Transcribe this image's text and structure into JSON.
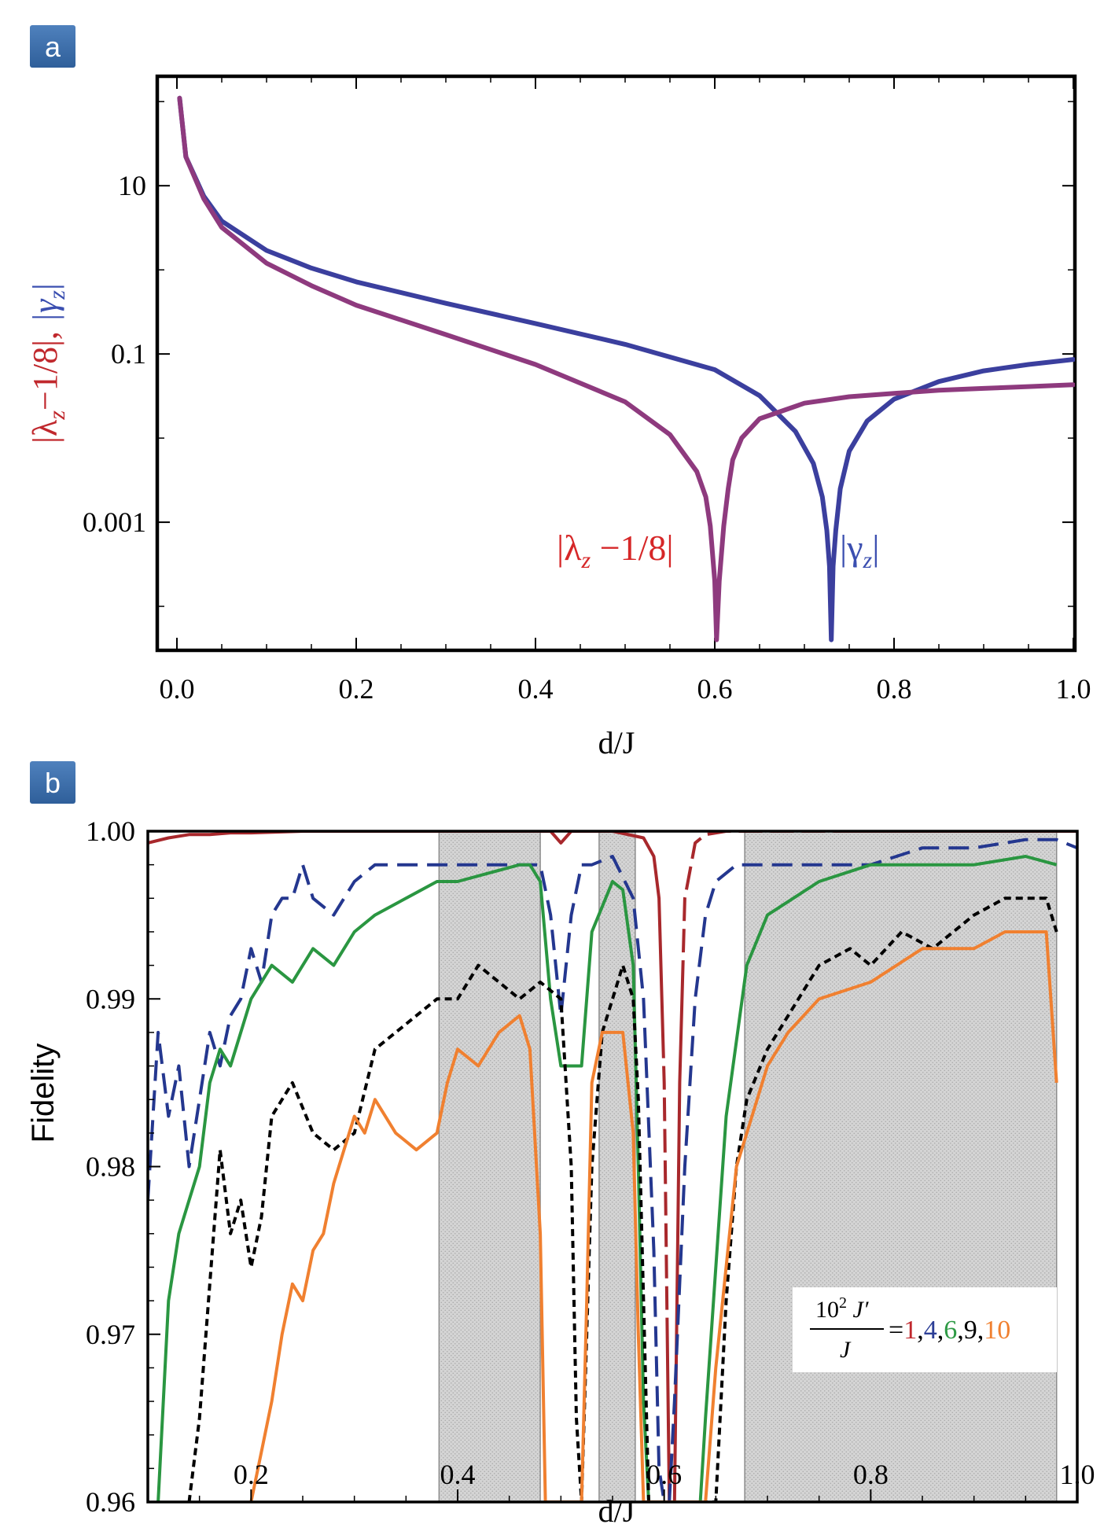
{
  "panels": {
    "a": {
      "tag": "a"
    },
    "b": {
      "tag": "b"
    }
  },
  "chart_data": [
    {
      "type": "line",
      "panel": "a",
      "xlabel": "d/J",
      "ylabel_parts": [
        "|λ",
        "z",
        "−1/8|, ",
        "|γ",
        "z",
        "|"
      ],
      "y_scale": "log",
      "xlim": [
        0.0,
        1.0
      ],
      "ylim": [
        3e-05,
        200
      ],
      "x_ticks": [
        0.0,
        0.2,
        0.4,
        0.6,
        0.8,
        1.0
      ],
      "x_tick_labels": [
        "0.0",
        "0.2",
        "0.4",
        "0.6",
        "0.8",
        "1.0"
      ],
      "y_ticks": [
        10,
        0.1,
        0.001
      ],
      "y_tick_labels": [
        "10",
        "0.1",
        "0.001"
      ],
      "series": [
        {
          "key": "gamma",
          "color": "#3b3f9e",
          "x": [
            0.003,
            0.01,
            0.03,
            0.05,
            0.1,
            0.15,
            0.2,
            0.3,
            0.4,
            0.5,
            0.6,
            0.65,
            0.69,
            0.71,
            0.72,
            0.725,
            0.728,
            0.73,
            0.732,
            0.735,
            0.74,
            0.75,
            0.77,
            0.8,
            0.85,
            0.9,
            0.95,
            1.0
          ],
          "y": [
            110,
            22,
            7.5,
            3.8,
            1.7,
            1.05,
            0.72,
            0.4,
            0.23,
            0.13,
            0.065,
            0.032,
            0.012,
            0.005,
            0.002,
            0.0008,
            0.0003,
            4e-05,
            0.0003,
            0.0008,
            0.0025,
            0.007,
            0.016,
            0.029,
            0.047,
            0.063,
            0.075,
            0.086
          ]
        },
        {
          "key": "lambda",
          "color": "#8e3a7e",
          "x": [
            0.003,
            0.01,
            0.03,
            0.05,
            0.1,
            0.15,
            0.2,
            0.3,
            0.4,
            0.5,
            0.55,
            0.58,
            0.59,
            0.595,
            0.6,
            0.602,
            0.605,
            0.61,
            0.615,
            0.62,
            0.63,
            0.65,
            0.7,
            0.75,
            0.8,
            0.85,
            0.9,
            0.95,
            1.0
          ],
          "y": [
            110,
            22,
            7,
            3.2,
            1.2,
            0.65,
            0.38,
            0.17,
            0.075,
            0.027,
            0.011,
            0.004,
            0.002,
            0.0009,
            0.0002,
            4e-05,
            0.0002,
            0.0009,
            0.0025,
            0.0055,
            0.01,
            0.017,
            0.026,
            0.031,
            0.034,
            0.037,
            0.039,
            0.041,
            0.043
          ]
        }
      ],
      "annotations": {
        "lambda_label_parts": [
          "|λ",
          "z",
          " −1/8|"
        ],
        "lambda_label_color": "#d62728",
        "gamma_label_parts": [
          "|γ",
          "z",
          "|"
        ],
        "gamma_label_color": "#3b4fb0"
      }
    },
    {
      "type": "line",
      "panel": "b",
      "xlabel": "d/J",
      "ylabel": "Fidelity",
      "xlim": [
        0.1,
        1.0
      ],
      "ylim": [
        0.96,
        1.0
      ],
      "x_ticks": [
        0.2,
        0.4,
        0.6,
        0.8,
        1.0
      ],
      "x_tick_labels": [
        "0.2",
        "0.4",
        "0.6",
        "0.8",
        "1.0"
      ],
      "y_ticks": [
        1.0,
        0.99,
        0.98,
        0.97,
        0.96
      ],
      "y_tick_labels": [
        "1.00",
        "0.99",
        "0.98",
        "0.97",
        "0.96"
      ],
      "shaded_regions": [
        [
          0.382,
          0.48
        ],
        [
          0.537,
          0.572
        ],
        [
          0.678,
          0.98
        ]
      ],
      "legend": {
        "numerator": "10",
        "exponent": "2",
        "numerator_var": " J′",
        "denominator": "J",
        "equals": "=",
        "sep": ",",
        "values": [
          "1",
          "4",
          "6",
          "9",
          "10"
        ],
        "value_colors": [
          "#c0282d",
          "#2c3e96",
          "#2e9a45",
          "#000000",
          "#f08030"
        ]
      },
      "series": [
        {
          "key": "J1",
          "color": "#a8282c",
          "dash": "solid-then-longdash",
          "x": [
            0.1,
            0.12,
            0.14,
            0.16,
            0.18,
            0.2,
            0.25,
            0.3,
            0.35,
            0.4,
            0.45,
            0.49,
            0.5,
            0.51,
            0.52,
            0.55,
            0.58,
            0.59,
            0.595,
            0.6,
            0.605,
            0.61,
            0.615,
            0.62,
            0.63,
            0.64,
            0.66,
            0.7,
            0.8,
            0.9,
            1.0
          ],
          "y": [
            0.9993,
            0.9996,
            0.9998,
            0.9998,
            0.9999,
            0.9999,
            1.0,
            1.0,
            1.0,
            1.0,
            1.0,
            1.0,
            0.9993,
            1.0,
            1.0,
            1.0,
            0.9996,
            0.9985,
            0.996,
            0.985,
            0.96,
            0.96,
            0.985,
            0.996,
            0.9993,
            0.9998,
            1.0,
            1.0,
            1.0,
            1.0,
            1.0
          ]
        },
        {
          "key": "J4",
          "color": "#24378f",
          "dash": "longdash",
          "x": [
            0.1,
            0.11,
            0.12,
            0.13,
            0.14,
            0.15,
            0.16,
            0.17,
            0.18,
            0.19,
            0.2,
            0.21,
            0.22,
            0.23,
            0.24,
            0.25,
            0.26,
            0.28,
            0.3,
            0.32,
            0.35,
            0.38,
            0.42,
            0.46,
            0.48,
            0.49,
            0.5,
            0.51,
            0.52,
            0.53,
            0.55,
            0.57,
            0.58,
            0.59,
            0.595,
            0.6,
            0.605,
            0.61,
            0.62,
            0.63,
            0.64,
            0.65,
            0.67,
            0.7,
            0.75,
            0.8,
            0.85,
            0.9,
            0.95,
            0.98,
            1.0
          ],
          "y": [
            0.978,
            0.988,
            0.983,
            0.986,
            0.98,
            0.984,
            0.988,
            0.986,
            0.989,
            0.99,
            0.993,
            0.991,
            0.995,
            0.996,
            0.996,
            0.998,
            0.996,
            0.995,
            0.997,
            0.998,
            0.998,
            0.998,
            0.998,
            0.998,
            0.998,
            0.995,
            0.989,
            0.995,
            0.998,
            0.998,
            0.9985,
            0.996,
            0.99,
            0.975,
            0.962,
            0.96,
            0.96,
            0.966,
            0.98,
            0.99,
            0.995,
            0.997,
            0.998,
            0.998,
            0.998,
            0.998,
            0.999,
            0.999,
            0.9995,
            0.9995,
            0.999
          ]
        },
        {
          "key": "J6",
          "color": "#2a9641",
          "dash": "solid",
          "x": [
            0.11,
            0.12,
            0.13,
            0.14,
            0.15,
            0.16,
            0.17,
            0.18,
            0.19,
            0.2,
            0.22,
            0.24,
            0.26,
            0.28,
            0.3,
            0.32,
            0.35,
            0.38,
            0.4,
            0.43,
            0.46,
            0.47,
            0.48,
            0.49,
            0.5,
            0.51,
            0.52,
            0.53,
            0.55,
            0.56,
            0.57,
            0.575,
            0.58,
            0.585,
            0.59,
            0.63,
            0.635,
            0.64,
            0.66,
            0.68,
            0.7,
            0.75,
            0.8,
            0.85,
            0.9,
            0.95,
            0.98
          ],
          "y": [
            0.96,
            0.972,
            0.976,
            0.978,
            0.98,
            0.985,
            0.987,
            0.986,
            0.988,
            0.99,
            0.992,
            0.991,
            0.993,
            0.992,
            0.994,
            0.995,
            0.996,
            0.997,
            0.997,
            0.9975,
            0.998,
            0.998,
            0.997,
            0.99,
            0.986,
            0.986,
            0.986,
            0.994,
            0.997,
            0.9965,
            0.992,
            0.98,
            0.966,
            0.96,
            0.96,
            0.96,
            0.96,
            0.965,
            0.983,
            0.992,
            0.995,
            0.997,
            0.998,
            0.998,
            0.998,
            0.9985,
            0.998
          ]
        },
        {
          "key": "J9",
          "color": "#000000",
          "dash": "shortdash",
          "x": [
            0.14,
            0.15,
            0.16,
            0.17,
            0.18,
            0.19,
            0.2,
            0.21,
            0.22,
            0.24,
            0.26,
            0.28,
            0.3,
            0.32,
            0.34,
            0.36,
            0.38,
            0.4,
            0.42,
            0.44,
            0.46,
            0.48,
            0.5,
            0.51,
            0.515,
            0.52,
            0.53,
            0.54,
            0.55,
            0.56,
            0.57,
            0.575,
            0.58,
            0.585,
            0.65,
            0.66,
            0.67,
            0.68,
            0.7,
            0.72,
            0.75,
            0.78,
            0.8,
            0.83,
            0.86,
            0.9,
            0.93,
            0.95,
            0.97,
            0.98
          ],
          "y": [
            0.96,
            0.965,
            0.973,
            0.981,
            0.976,
            0.978,
            0.974,
            0.977,
            0.983,
            0.985,
            0.982,
            0.981,
            0.982,
            0.987,
            0.988,
            0.989,
            0.99,
            0.99,
            0.992,
            0.991,
            0.99,
            0.991,
            0.99,
            0.98,
            0.965,
            0.96,
            0.98,
            0.988,
            0.99,
            0.992,
            0.99,
            0.984,
            0.972,
            0.96,
            0.96,
            0.972,
            0.98,
            0.984,
            0.987,
            0.989,
            0.992,
            0.993,
            0.992,
            0.994,
            0.993,
            0.995,
            0.996,
            0.996,
            0.996,
            0.994
          ]
        },
        {
          "key": "J10",
          "color": "#f08030",
          "dash": "solid",
          "x": [
            0.2,
            0.21,
            0.22,
            0.23,
            0.24,
            0.25,
            0.26,
            0.27,
            0.28,
            0.29,
            0.3,
            0.31,
            0.32,
            0.34,
            0.36,
            0.38,
            0.39,
            0.4,
            0.42,
            0.44,
            0.46,
            0.47,
            0.48,
            0.485,
            0.49,
            0.52,
            0.525,
            0.53,
            0.54,
            0.56,
            0.57,
            0.575,
            0.58,
            0.64,
            0.65,
            0.67,
            0.69,
            0.7,
            0.72,
            0.75,
            0.8,
            0.85,
            0.9,
            0.93,
            0.95,
            0.97,
            0.98
          ],
          "y": [
            0.96,
            0.963,
            0.966,
            0.97,
            0.973,
            0.972,
            0.975,
            0.976,
            0.979,
            0.981,
            0.983,
            0.982,
            0.984,
            0.982,
            0.981,
            0.982,
            0.985,
            0.987,
            0.986,
            0.988,
            0.989,
            0.987,
            0.976,
            0.96,
            0.96,
            0.96,
            0.972,
            0.985,
            0.988,
            0.988,
            0.982,
            0.97,
            0.96,
            0.96,
            0.968,
            0.98,
            0.984,
            0.986,
            0.988,
            0.99,
            0.991,
            0.993,
            0.993,
            0.994,
            0.994,
            0.994,
            0.985
          ]
        }
      ]
    }
  ]
}
